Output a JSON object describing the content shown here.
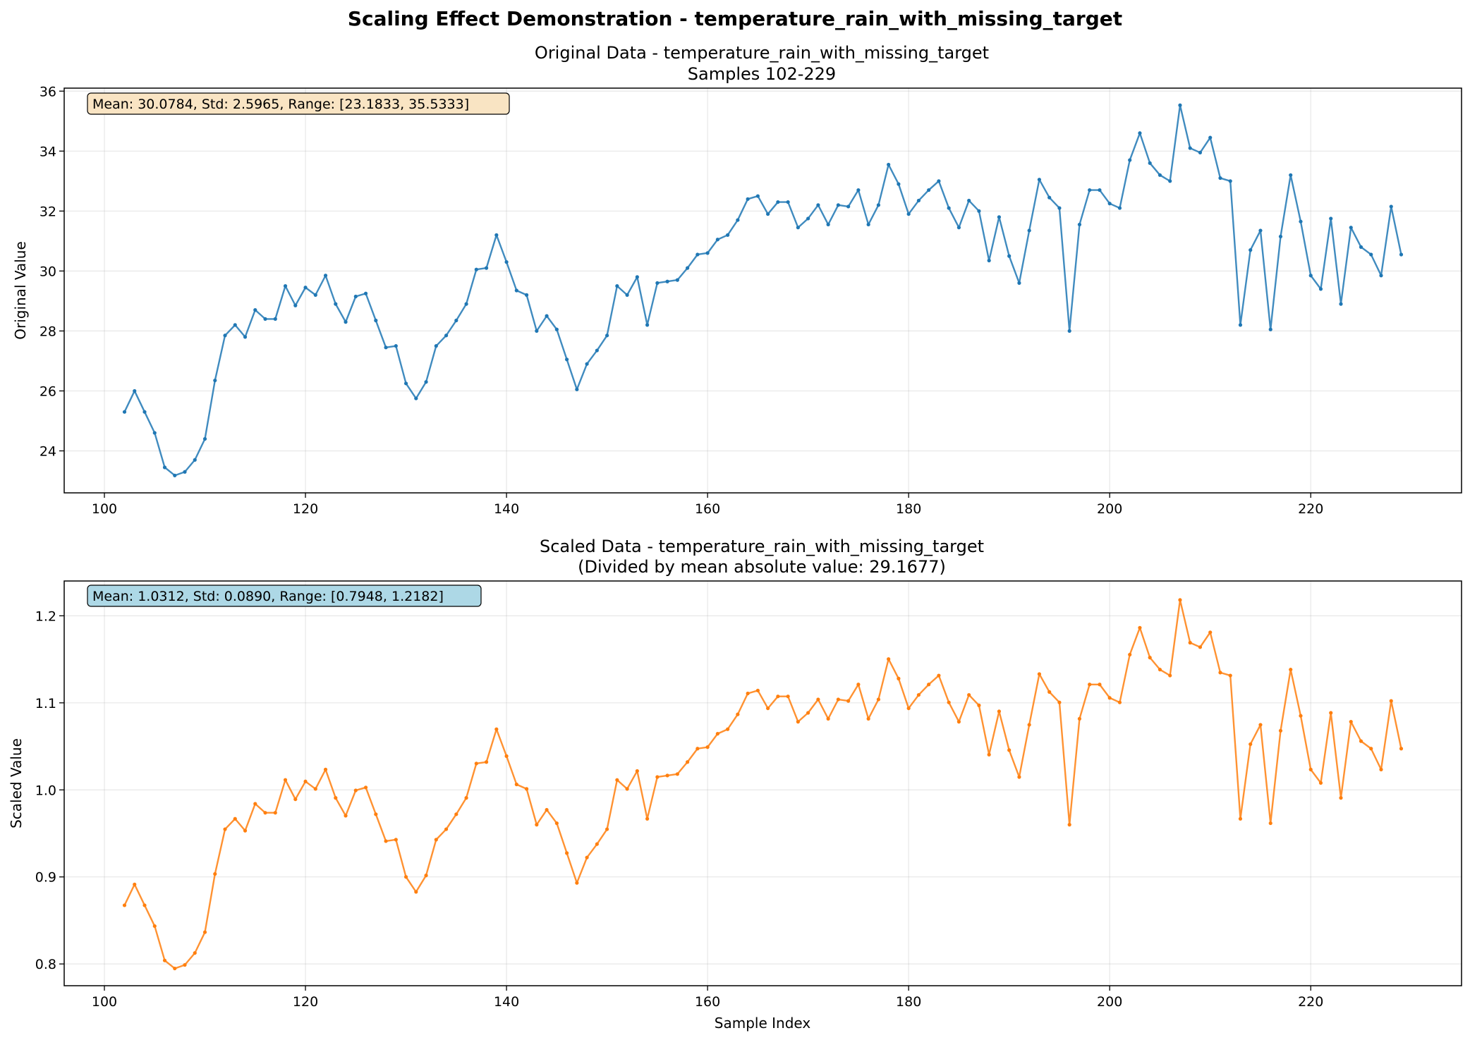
{
  "suptitle": "Scaling Effect Demonstration - temperature_rain_with_missing_target",
  "chart_data": [
    {
      "type": "line",
      "title": "Original Data - temperature_rain_with_missing_target",
      "subtitle": "Samples 102-229",
      "xlabel": "",
      "ylabel": "Original Value",
      "xlim": [
        96,
        235
      ],
      "ylim": [
        22.6,
        36.1
      ],
      "xticks": [
        100,
        120,
        140,
        160,
        180,
        200,
        220
      ],
      "yticks": [
        24,
        26,
        28,
        30,
        32,
        34,
        36
      ],
      "grid": true,
      "color": "#1f77b4",
      "stats_text": "Mean: 30.0784, Std: 2.5965, Range: [23.1833, 35.5333]",
      "stats_box_color": "#f9e4c3",
      "x_start": 102,
      "x_end": 229,
      "values": [
        25.3,
        26.0,
        25.3,
        24.6,
        23.45,
        23.18,
        23.3,
        23.7,
        24.4,
        26.35,
        27.85,
        28.2,
        27.8,
        28.7,
        28.4,
        28.4,
        29.5,
        28.85,
        29.45,
        29.2,
        29.85,
        28.9,
        28.3,
        29.15,
        29.25,
        28.35,
        27.45,
        27.5,
        26.25,
        25.75,
        26.3,
        27.5,
        27.85,
        28.35,
        28.9,
        30.05,
        30.1,
        31.2,
        30.3,
        29.35,
        29.2,
        28.0,
        28.5,
        28.05,
        27.05,
        26.05,
        26.9,
        27.35,
        27.85,
        29.5,
        29.2,
        29.8,
        28.2,
        29.6,
        29.65,
        29.7,
        30.1,
        30.55,
        30.6,
        31.05,
        31.2,
        31.7,
        32.4,
        32.5,
        31.9,
        32.3,
        32.3,
        31.45,
        31.75,
        32.2,
        31.55,
        32.2,
        32.15,
        32.7,
        31.55,
        32.2,
        33.55,
        32.9,
        31.9,
        32.35,
        32.7,
        33.0,
        32.1,
        31.45,
        32.35,
        32.0,
        30.35,
        31.8,
        30.5,
        29.6,
        31.35,
        33.05,
        32.45,
        32.1,
        28.0,
        31.55,
        32.7,
        32.7,
        32.25,
        32.1,
        33.7,
        34.6,
        33.6,
        33.2,
        33.0,
        35.53,
        34.1,
        33.95,
        34.45,
        33.1,
        33.0,
        28.2,
        30.7,
        31.35,
        28.05,
        31.15,
        33.2,
        31.65,
        29.85,
        29.4,
        31.75,
        28.9,
        31.45,
        30.8,
        30.55,
        29.85,
        32.15,
        30.55
      ]
    },
    {
      "type": "line",
      "title": "Scaled Data - temperature_rain_with_missing_target",
      "subtitle": "(Divided by mean absolute value: 29.1677)",
      "xlabel": "Sample Index",
      "ylabel": "Scaled Value",
      "xlim": [
        96,
        235
      ],
      "ylim": [
        0.775,
        1.24
      ],
      "xticks": [
        100,
        120,
        140,
        160,
        180,
        200,
        220
      ],
      "yticks": [
        0.8,
        0.9,
        1.0,
        1.1,
        1.2
      ],
      "grid": true,
      "color": "#ff7f0e",
      "stats_text": "Mean: 1.0312, Std: 0.0890, Range: [0.7948, 1.2182]",
      "stats_box_color": "#add8e6",
      "x_start": 102,
      "x_end": 229,
      "values": [
        0.8674,
        0.8914,
        0.8674,
        0.8435,
        0.804,
        0.7948,
        0.7989,
        0.8126,
        0.8365,
        0.9034,
        0.9548,
        0.9668,
        0.9531,
        0.984,
        0.9737,
        0.9737,
        1.0115,
        0.9892,
        1.0097,
        1.0011,
        1.0234,
        0.9908,
        0.9703,
        0.9994,
        1.0028,
        0.972,
        0.9411,
        0.9428,
        0.9,
        0.8828,
        0.9017,
        0.9428,
        0.9548,
        0.972,
        0.9908,
        1.0303,
        1.032,
        1.0697,
        1.0388,
        1.0063,
        1.0011,
        0.96,
        0.9771,
        0.9617,
        0.9274,
        0.8931,
        0.9223,
        0.9377,
        0.9548,
        1.0114,
        1.0011,
        1.0217,
        0.9668,
        1.0148,
        1.0165,
        1.0182,
        1.032,
        1.0474,
        1.0491,
        1.0645,
        1.0697,
        1.0868,
        1.1108,
        1.1142,
        1.0937,
        1.1074,
        1.1074,
        1.0783,
        1.0885,
        1.1039,
        1.0817,
        1.1039,
        1.1022,
        1.1211,
        1.0817,
        1.1039,
        1.1503,
        1.1279,
        1.0937,
        1.1091,
        1.1211,
        1.1314,
        1.1005,
        1.0783,
        1.1091,
        1.0971,
        1.0405,
        1.0902,
        1.0457,
        1.0148,
        1.0748,
        1.1331,
        1.1125,
        1.1005,
        0.96,
        1.0817,
        1.1211,
        1.1211,
        1.1057,
        1.1005,
        1.1554,
        1.1863,
        1.152,
        1.1382,
        1.1314,
        1.2182,
        1.1691,
        1.164,
        1.181,
        1.1348,
        1.1314,
        0.9668,
        1.0525,
        1.0748,
        0.9617,
        1.068,
        1.1382,
        1.0851,
        1.0234,
        1.008,
        1.0885,
        0.9908,
        1.0783,
        1.056,
        1.0474,
        1.0234,
        1.1022,
        1.0474
      ]
    }
  ]
}
